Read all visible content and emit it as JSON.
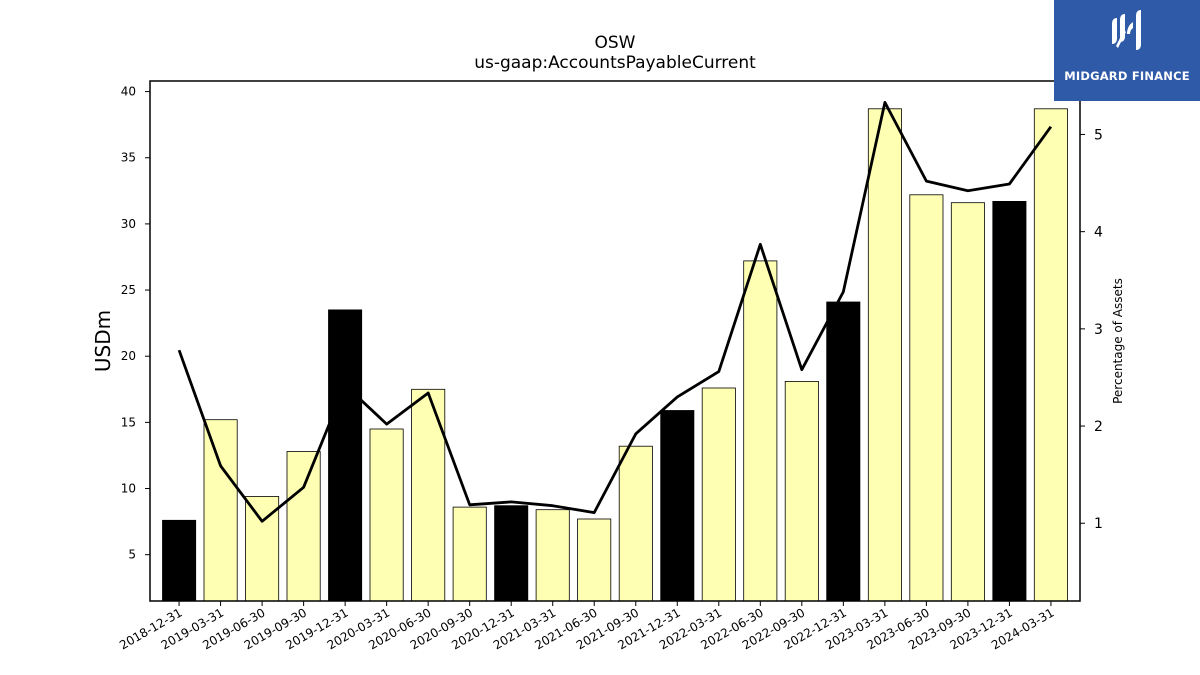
{
  "logo": {
    "text": "MIDGARD FINANCE"
  },
  "chart_data": {
    "type": "bar",
    "title": "OSW",
    "subtitle": "us-gaap:AccountsPayableCurrent",
    "ylabel": "USDm",
    "y2label": "Percentage of Assets",
    "ylim": [
      1.5,
      40.8
    ],
    "y2lim": [
      0.2,
      5.55
    ],
    "yticks": [
      5,
      10,
      15,
      20,
      25,
      30,
      35,
      40
    ],
    "y2ticks": [
      1,
      2,
      3,
      4,
      5
    ],
    "categories": [
      "2018-12-31",
      "2019-03-31",
      "2019-06-30",
      "2019-09-30",
      "2019-12-31",
      "2020-03-31",
      "2020-06-30",
      "2020-09-30",
      "2020-12-31",
      "2021-03-31",
      "2021-06-30",
      "2021-09-30",
      "2021-12-31",
      "2022-03-31",
      "2022-06-30",
      "2022-09-30",
      "2022-12-31",
      "2023-03-31",
      "2023-06-30",
      "2023-09-30",
      "2023-12-31",
      "2024-03-31"
    ],
    "series": [
      {
        "type": "bar",
        "axis": "left",
        "values": [
          7.6,
          15.2,
          9.4,
          12.8,
          23.5,
          14.5,
          17.5,
          8.6,
          8.7,
          8.4,
          7.7,
          13.2,
          15.9,
          17.6,
          27.2,
          18.1,
          24.1,
          38.7,
          32.2,
          31.6,
          31.7,
          38.7
        ],
        "colors": [
          "#000000",
          "#ffffb3",
          "#ffffb3",
          "#ffffb3",
          "#000000",
          "#ffffb3",
          "#ffffb3",
          "#ffffb3",
          "#000000",
          "#ffffb3",
          "#ffffb3",
          "#ffffb3",
          "#000000",
          "#ffffb3",
          "#ffffb3",
          "#ffffb3",
          "#000000",
          "#ffffb3",
          "#ffffb3",
          "#ffffb3",
          "#000000",
          "#ffffb3"
        ]
      },
      {
        "type": "line",
        "axis": "right",
        "color": "#000000",
        "values": [
          2.78,
          1.59,
          1.02,
          1.37,
          2.42,
          2.02,
          2.34,
          1.19,
          1.22,
          1.18,
          1.11,
          1.92,
          2.3,
          2.56,
          3.87,
          2.58,
          3.38,
          5.33,
          4.52,
          4.42,
          4.49,
          5.08
        ]
      }
    ],
    "grid": false,
    "legend": "none"
  }
}
